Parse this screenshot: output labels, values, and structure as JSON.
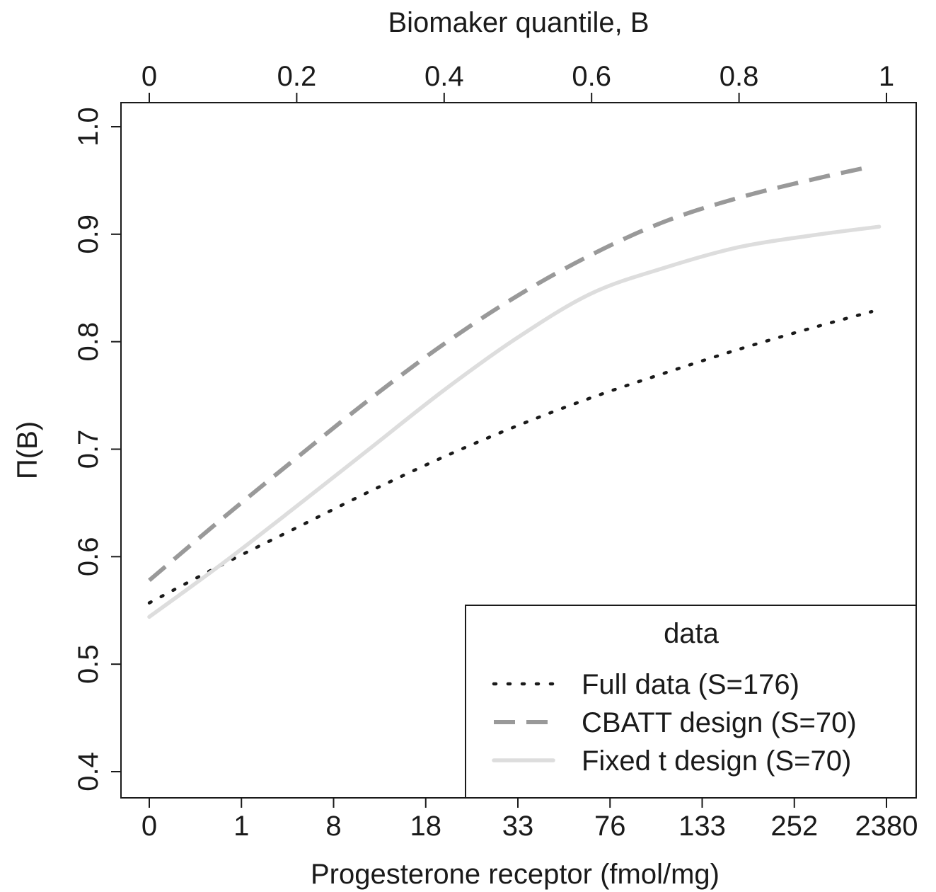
{
  "chart_data": {
    "type": "line",
    "title": "",
    "top_axis_label": "Biomaker quantile, B",
    "xlabel": "Progesterone receptor (fmol/mg)",
    "ylabel": "Π(B)",
    "x_quantile_ticks": [
      "0",
      "0.2",
      "0.4",
      "0.6",
      "0.8",
      "1"
    ],
    "x_bottom_ticks": [
      "0",
      "1",
      "8",
      "18",
      "33",
      "76",
      "133",
      "252",
      "2380"
    ],
    "y_ticks": [
      "0.4",
      "0.5",
      "0.6",
      "0.7",
      "0.8",
      "0.9",
      "1.0"
    ],
    "xlim": [
      -0.04,
      1.04
    ],
    "ylim": [
      0.375,
      1.025
    ],
    "grid": false,
    "legend_placement": "bottom-right",
    "legend_title": "data",
    "series": [
      {
        "name": "Full data (S=176)",
        "style": "dotted",
        "color": "#1a1a1a",
        "x": [
          0,
          0.1,
          0.2,
          0.3,
          0.4,
          0.5,
          0.6,
          0.7,
          0.8,
          0.9,
          0.98
        ],
        "y": [
          0.557,
          0.593,
          0.627,
          0.661,
          0.693,
          0.722,
          0.748,
          0.771,
          0.793,
          0.813,
          0.828
        ]
      },
      {
        "name": "CBATT design (S=70)",
        "style": "dashed",
        "color": "#999999",
        "x": [
          0,
          0.1,
          0.2,
          0.3,
          0.4,
          0.5,
          0.6,
          0.7,
          0.8,
          0.9,
          0.98
        ],
        "y": [
          0.578,
          0.636,
          0.692,
          0.747,
          0.798,
          0.843,
          0.881,
          0.912,
          0.934,
          0.951,
          0.963
        ]
      },
      {
        "name": "Fixed t design (S=70)",
        "style": "solid",
        "color": "#dddddd",
        "x": [
          0,
          0.1,
          0.2,
          0.3,
          0.4,
          0.5,
          0.6,
          0.7,
          0.8,
          0.9,
          0.99
        ],
        "y": [
          0.544,
          0.594,
          0.647,
          0.701,
          0.755,
          0.804,
          0.845,
          0.869,
          0.888,
          0.899,
          0.907
        ]
      }
    ]
  }
}
